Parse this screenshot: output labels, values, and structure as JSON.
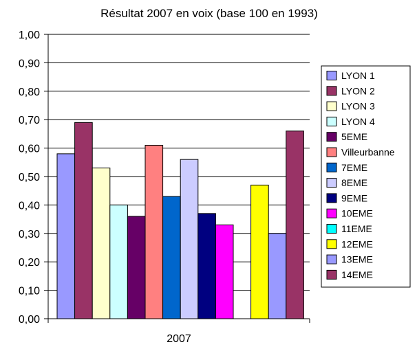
{
  "chart_data": {
    "type": "bar",
    "title": "Résultat 2007 en voix (base 100 en 1993)",
    "categories": [
      "2007"
    ],
    "ylim": [
      0,
      1.0
    ],
    "yticks": [
      "0,00",
      "0,10",
      "0,20",
      "0,30",
      "0,40",
      "0,50",
      "0,60",
      "0,70",
      "0,80",
      "0,90",
      "1,00"
    ],
    "grid": true,
    "legend_position": "right",
    "series": [
      {
        "name": "LYON 1",
        "values": [
          0.58
        ],
        "color": "#9999ff"
      },
      {
        "name": "LYON 2",
        "values": [
          0.69
        ],
        "color": "#993366"
      },
      {
        "name": "LYON 3",
        "values": [
          0.53
        ],
        "color": "#ffffcc"
      },
      {
        "name": "LYON 4",
        "values": [
          0.4
        ],
        "color": "#ccffff"
      },
      {
        "name": "5EME",
        "values": [
          0.36
        ],
        "color": "#660066"
      },
      {
        "name": "Villeurbanne",
        "values": [
          0.61
        ],
        "color": "#ff8080"
      },
      {
        "name": "7EME",
        "values": [
          0.43
        ],
        "color": "#0066cc"
      },
      {
        "name": "8EME",
        "values": [
          0.56
        ],
        "color": "#ccccff"
      },
      {
        "name": "9EME",
        "values": [
          0.37
        ],
        "color": "#000080"
      },
      {
        "name": "10EME",
        "values": [
          0.33
        ],
        "color": "#ff00ff"
      },
      {
        "name": "11EME",
        "values": [
          0
        ],
        "color": "#00ffff"
      },
      {
        "name": "12EME",
        "values": [
          0.47
        ],
        "color": "#ffff00"
      },
      {
        "name": "13EME",
        "values": [
          0.3
        ],
        "color": "#9999ff"
      },
      {
        "name": "14EME",
        "values": [
          0.66
        ],
        "color": "#993366"
      }
    ]
  }
}
